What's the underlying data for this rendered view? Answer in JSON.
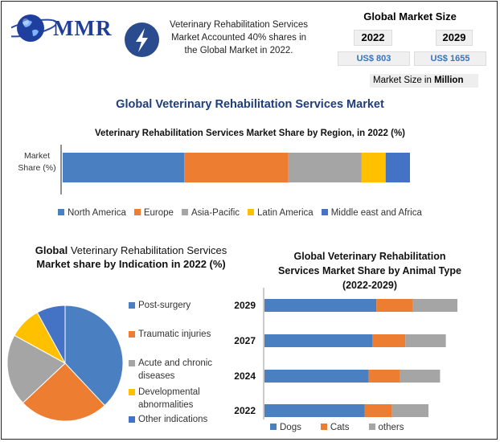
{
  "header": {
    "logo_text": "MMR",
    "headline": "Veterinary Rehabilitation Services Market Accounted 40% shares in the Global Market in 2022.",
    "market_size": {
      "title": "Global Market Size",
      "year_start": "2022",
      "year_end": "2029",
      "value_start": "US$ 803",
      "value_end": "US$ 1655",
      "unit_prefix": "Market Size in ",
      "unit_bold": "Million"
    }
  },
  "main_title": "Global Veterinary Rehabilitation Services Market",
  "colors": {
    "blue": "#4a7fc1",
    "orange": "#ed7d31",
    "gray": "#a5a5a5",
    "yellow": "#ffc000",
    "darkblue": "#4472c4",
    "title_blue": "#1f3d7a"
  },
  "chart_data": [
    {
      "type": "bar",
      "orientation": "horizontal-stacked",
      "title": "Veterinary Rehabilitation Services Market Share by Region, in 2022 (%)",
      "ylabel": "Market Share (%)",
      "categories": [
        "Market Share (%)"
      ],
      "series": [
        {
          "name": "North America",
          "color": "#4a7fc1",
          "values": [
            35
          ]
        },
        {
          "name": "Europe",
          "color": "#ed7d31",
          "values": [
            30
          ]
        },
        {
          "name": "Asia-Pacific",
          "color": "#a5a5a5",
          "values": [
            21
          ]
        },
        {
          "name": "Latin America",
          "color": "#ffc000",
          "values": [
            7
          ]
        },
        {
          "name": "Middle east and Africa",
          "color": "#4472c4",
          "values": [
            7
          ]
        }
      ],
      "xlim": [
        0,
        100
      ],
      "legend": "bottom"
    },
    {
      "type": "pie",
      "title_bold": "Global",
      "title_rest": " Veterinary Rehabilitation Services",
      "title_line2": "Market share by Indication in 2022 (%)",
      "slices": [
        {
          "label": "Post-surgery",
          "value": 38,
          "color": "#4a7fc1"
        },
        {
          "label": "Traumatic injuries",
          "value": 25,
          "color": "#ed7d31"
        },
        {
          "label": "Acute and chronic diseases",
          "value": 20,
          "color": "#a5a5a5"
        },
        {
          "label": "Developmental abnormalities",
          "value": 9,
          "color": "#ffc000"
        },
        {
          "label": "Other indications",
          "value": 8,
          "color": "#4472c4"
        }
      ],
      "legend": "right"
    },
    {
      "type": "bar",
      "orientation": "horizontal-stacked",
      "title_lines": [
        "Global Veterinary Rehabilitation",
        "Services Market Share by Animal Type",
        "(2022-2029)"
      ],
      "categories": [
        "2029",
        "2027",
        "2024",
        "2022"
      ],
      "series": [
        {
          "name": "Dogs",
          "color": "#4a7fc1",
          "values": [
            58,
            56,
            54,
            52
          ]
        },
        {
          "name": "Cats",
          "color": "#ed7d31",
          "values": [
            19,
            17,
            16,
            14
          ]
        },
        {
          "name": "others",
          "color": "#a5a5a5",
          "values": [
            23,
            21,
            21,
            19
          ]
        }
      ],
      "xlim": [
        0,
        100
      ],
      "legend": "bottom"
    }
  ]
}
